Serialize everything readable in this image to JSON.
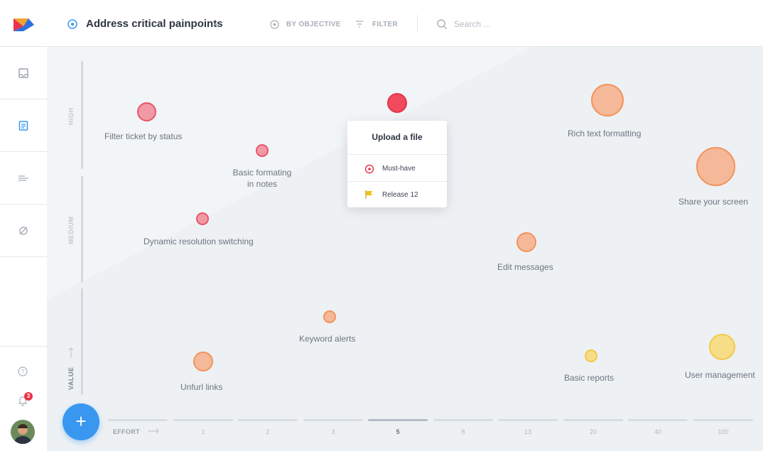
{
  "header": {
    "title": "Address critical painpoints",
    "by_objective": "BY OBJECTIVE",
    "filter": "FILTER",
    "search_placeholder": "Search ..."
  },
  "sidebar": {
    "nav_icons": [
      "inbox-icon",
      "notes-icon",
      "list-icon",
      "hidden-icon"
    ],
    "notification_count": "3"
  },
  "axis": {
    "value_bands": [
      "HIGH",
      "MEDIUM",
      "VALUE"
    ],
    "effort_label": "EFFORT",
    "effort_ticks": [
      "1",
      "2",
      "3",
      "5",
      "8",
      "13",
      "20",
      "40",
      "100"
    ],
    "active_tick": "5"
  },
  "bubbles": [
    {
      "label": "Filter ticket by status",
      "color": "red"
    },
    {
      "label": "Basic formating in notes",
      "color": "red"
    },
    {
      "label": "Dynamic resolution switching",
      "color": "red"
    },
    {
      "label": "Rich text formatting",
      "color": "orange"
    },
    {
      "label": "Share your screen",
      "color": "orange"
    },
    {
      "label": "Edit messages",
      "color": "orange"
    },
    {
      "label": "Keyword alerts",
      "color": "orange"
    },
    {
      "label": "Unfurl links",
      "color": "orange"
    },
    {
      "label": "Basic reports",
      "color": "yellow"
    },
    {
      "label": "User management",
      "color": "yellow"
    }
  ],
  "popup": {
    "title": "Upload a file",
    "priority": "Must-have",
    "release": "Release 12"
  },
  "colors": {
    "accent": "#3a97f0",
    "red": "#ea5569",
    "orange": "#f2935b",
    "yellow": "#f2c94a"
  }
}
